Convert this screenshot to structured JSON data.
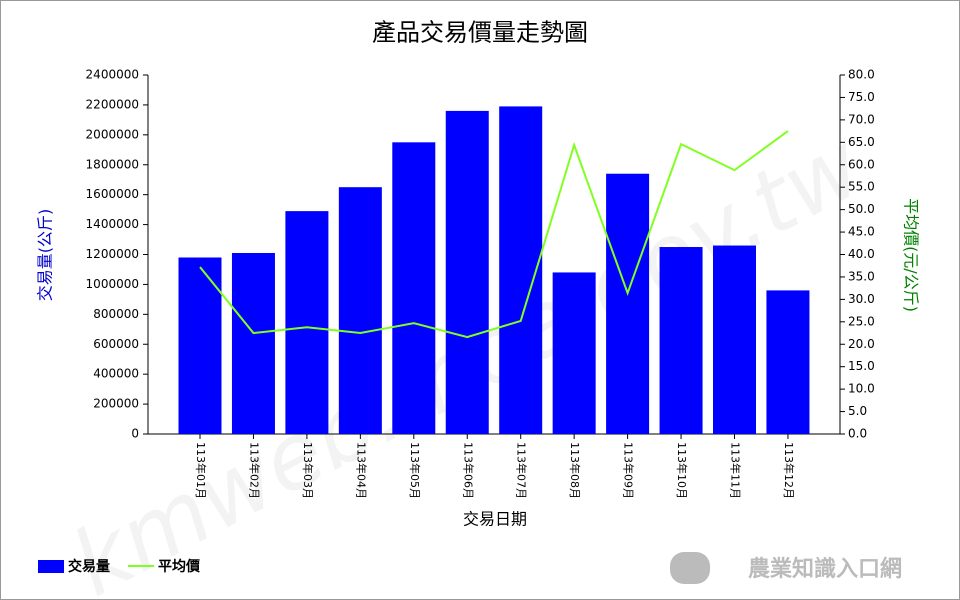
{
  "chart_data": {
    "type": "bar-line",
    "title": "產品交易價量走勢圖",
    "xlabel": "交易日期",
    "ylabel": "交易量(公斤)",
    "y2label": "平均價(元/公斤)",
    "categories": [
      "113年01月",
      "113年02月",
      "113年03月",
      "113年04月",
      "113年05月",
      "113年06月",
      "113年07月",
      "113年08月",
      "113年09月",
      "113年10月",
      "113年11月",
      "113年12月"
    ],
    "series": [
      {
        "name": "交易量",
        "type": "bar",
        "color": "#0000ff",
        "values": [
          1180000,
          1210000,
          1490000,
          1650000,
          1950000,
          2160000,
          2190000,
          1080000,
          1740000,
          1250000,
          1260000,
          960000
        ]
      },
      {
        "name": "平均價",
        "type": "line",
        "axis": "y2",
        "color": "#80ff20",
        "values": [
          37.2,
          22.5,
          23.8,
          22.5,
          24.7,
          21.6,
          25.2,
          64.4,
          31.4,
          64.6,
          58.8,
          67.5
        ]
      }
    ],
    "ylim": [
      0,
      2400000
    ],
    "yticks": [
      0,
      200000,
      400000,
      600000,
      800000,
      1000000,
      1200000,
      1400000,
      1600000,
      1800000,
      2000000,
      2200000,
      2400000
    ],
    "y2lim": [
      0,
      80
    ],
    "y2ticks": [
      {
        "value": 0,
        "label": "0.0"
      },
      {
        "value": 5,
        "label": "5.0"
      },
      {
        "value": 10,
        "label": "10.0"
      },
      {
        "value": 15,
        "label": "15.0"
      },
      {
        "value": 20,
        "label": "20.0"
      },
      {
        "value": 25,
        "label": "25.0"
      },
      {
        "value": 30,
        "label": "30.0"
      },
      {
        "value": 35,
        "label": "35.0"
      },
      {
        "value": 40,
        "label": "40.0"
      },
      {
        "value": 45,
        "label": "45.0"
      },
      {
        "value": 50,
        "label": "50.0"
      },
      {
        "value": 55,
        "label": "55.0"
      },
      {
        "value": 60,
        "label": "60.0"
      },
      {
        "value": 65,
        "label": "65.0"
      },
      {
        "value": 70,
        "label": "70.0"
      },
      {
        "value": 75,
        "label": "75.0"
      },
      {
        "value": 80,
        "label": "80.0"
      }
    ],
    "legend": "bottom-left",
    "watermark": "kmweb.moa.gov.tw",
    "logo": "農業知識入口網"
  }
}
